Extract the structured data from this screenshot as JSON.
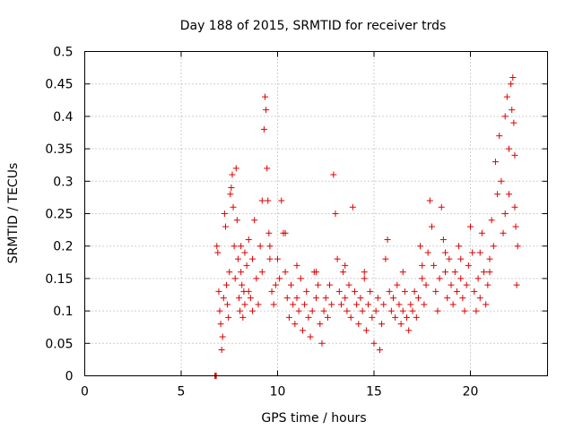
{
  "chart_data": {
    "type": "scatter",
    "title": "Day 188 of 2015, SRMTID for receiver trds",
    "xlabel": "GPS time / hours",
    "ylabel": "SRMTID / TECUs",
    "xlim": [
      0,
      24
    ],
    "ylim": [
      0,
      0.5
    ],
    "xticks": [
      "0",
      "5",
      "10",
      "15",
      "20"
    ],
    "xtick_values": [
      0,
      5,
      10,
      15,
      20
    ],
    "yticks": [
      "0",
      "0.05",
      "0.1",
      "0.15",
      "0.2",
      "0.25",
      "0.3",
      "0.35",
      "0.4",
      "0.45",
      "0.5"
    ],
    "ytick_values": [
      0,
      0.05,
      0.1,
      0.15,
      0.2,
      0.25,
      0.3,
      0.35,
      0.4,
      0.45,
      0.5
    ],
    "grid": true,
    "marker": "+",
    "series_color": "#e00000",
    "series": [
      {
        "name": "",
        "points": [
          [
            6.75,
            0.0
          ],
          [
            6.78,
            0.0
          ],
          [
            6.8,
            0.0
          ],
          [
            6.82,
            0.0
          ],
          [
            6.85,
            0.2
          ],
          [
            6.9,
            0.19
          ],
          [
            6.95,
            0.13
          ],
          [
            7.0,
            0.1
          ],
          [
            7.05,
            0.08
          ],
          [
            7.1,
            0.04
          ],
          [
            7.15,
            0.06
          ],
          [
            7.2,
            0.12
          ],
          [
            7.25,
            0.25
          ],
          [
            7.3,
            0.23
          ],
          [
            7.35,
            0.14
          ],
          [
            7.4,
            0.11
          ],
          [
            7.45,
            0.09
          ],
          [
            7.5,
            0.16
          ],
          [
            7.55,
            0.28
          ],
          [
            7.6,
            0.29
          ],
          [
            7.65,
            0.31
          ],
          [
            7.7,
            0.26
          ],
          [
            7.75,
            0.2
          ],
          [
            7.8,
            0.15
          ],
          [
            7.85,
            0.32
          ],
          [
            7.9,
            0.24
          ],
          [
            7.95,
            0.18
          ],
          [
            8.0,
            0.12
          ],
          [
            8.05,
            0.1
          ],
          [
            8.1,
            0.16
          ],
          [
            8.15,
            0.14
          ],
          [
            8.2,
            0.09
          ],
          [
            8.25,
            0.13
          ],
          [
            8.3,
            0.11
          ],
          [
            8.4,
            0.17
          ],
          [
            8.5,
            0.13
          ],
          [
            8.6,
            0.12
          ],
          [
            8.7,
            0.1
          ],
          [
            8.8,
            0.24
          ],
          [
            8.9,
            0.15
          ],
          [
            9.0,
            0.11
          ],
          [
            9.1,
            0.2
          ],
          [
            9.2,
            0.27
          ],
          [
            9.3,
            0.38
          ],
          [
            9.35,
            0.43
          ],
          [
            9.4,
            0.41
          ],
          [
            9.45,
            0.32
          ],
          [
            9.5,
            0.27
          ],
          [
            9.55,
            0.22
          ],
          [
            9.6,
            0.18
          ],
          [
            9.7,
            0.13
          ],
          [
            9.8,
            0.11
          ],
          [
            9.9,
            0.14
          ],
          [
            10.0,
            0.18
          ],
          [
            10.1,
            0.15
          ],
          [
            10.2,
            0.27
          ],
          [
            10.3,
            0.22
          ],
          [
            10.4,
            0.16
          ],
          [
            10.5,
            0.12
          ],
          [
            10.6,
            0.09
          ],
          [
            10.7,
            0.14
          ],
          [
            10.8,
            0.11
          ],
          [
            10.9,
            0.08
          ],
          [
            11.0,
            0.12
          ],
          [
            11.1,
            0.1
          ],
          [
            11.2,
            0.15
          ],
          [
            11.3,
            0.07
          ],
          [
            11.4,
            0.11
          ],
          [
            11.5,
            0.13
          ],
          [
            11.6,
            0.09
          ],
          [
            11.7,
            0.06
          ],
          [
            11.8,
            0.1
          ],
          [
            11.9,
            0.16
          ],
          [
            12.0,
            0.12
          ],
          [
            12.1,
            0.14
          ],
          [
            12.2,
            0.08
          ],
          [
            12.3,
            0.05
          ],
          [
            12.4,
            0.1
          ],
          [
            12.5,
            0.12
          ],
          [
            12.6,
            0.09
          ],
          [
            12.7,
            0.14
          ],
          [
            12.8,
            0.11
          ],
          [
            12.9,
            0.31
          ],
          [
            13.0,
            0.25
          ],
          [
            13.1,
            0.18
          ],
          [
            13.2,
            0.13
          ],
          [
            13.3,
            0.11
          ],
          [
            13.4,
            0.16
          ],
          [
            13.5,
            0.12
          ],
          [
            13.6,
            0.1
          ],
          [
            13.7,
            0.14
          ],
          [
            13.8,
            0.09
          ],
          [
            13.9,
            0.26
          ],
          [
            14.0,
            0.13
          ],
          [
            14.1,
            0.11
          ],
          [
            14.2,
            0.08
          ],
          [
            14.3,
            0.12
          ],
          [
            14.4,
            0.1
          ],
          [
            14.5,
            0.15
          ],
          [
            14.6,
            0.07
          ],
          [
            14.7,
            0.11
          ],
          [
            14.8,
            0.13
          ],
          [
            14.9,
            0.09
          ],
          [
            15.0,
            0.05
          ],
          [
            15.1,
            0.1
          ],
          [
            15.2,
            0.12
          ],
          [
            15.3,
            0.04
          ],
          [
            15.4,
            0.08
          ],
          [
            15.5,
            0.11
          ],
          [
            15.6,
            0.18
          ],
          [
            15.7,
            0.21
          ],
          [
            15.8,
            0.13
          ],
          [
            15.9,
            0.1
          ],
          [
            16.0,
            0.12
          ],
          [
            16.1,
            0.09
          ],
          [
            16.2,
            0.14
          ],
          [
            16.3,
            0.11
          ],
          [
            16.4,
            0.08
          ],
          [
            16.5,
            0.1
          ],
          [
            16.6,
            0.13
          ],
          [
            16.7,
            0.09
          ],
          [
            16.8,
            0.07
          ],
          [
            16.9,
            0.11
          ],
          [
            17.0,
            0.1
          ],
          [
            17.1,
            0.13
          ],
          [
            17.2,
            0.09
          ],
          [
            17.3,
            0.12
          ],
          [
            17.4,
            0.2
          ],
          [
            17.5,
            0.15
          ],
          [
            17.6,
            0.11
          ],
          [
            17.7,
            0.14
          ],
          [
            17.8,
            0.19
          ],
          [
            17.9,
            0.27
          ],
          [
            18.0,
            0.23
          ],
          [
            18.1,
            0.17
          ],
          [
            18.2,
            0.13
          ],
          [
            18.3,
            0.1
          ],
          [
            18.4,
            0.15
          ],
          [
            18.5,
            0.26
          ],
          [
            18.6,
            0.21
          ],
          [
            18.7,
            0.16
          ],
          [
            18.8,
            0.12
          ],
          [
            18.9,
            0.18
          ],
          [
            19.0,
            0.14
          ],
          [
            19.1,
            0.11
          ],
          [
            19.2,
            0.16
          ],
          [
            19.3,
            0.13
          ],
          [
            19.4,
            0.2
          ],
          [
            19.5,
            0.15
          ],
          [
            19.6,
            0.12
          ],
          [
            19.7,
            0.1
          ],
          [
            19.8,
            0.14
          ],
          [
            19.9,
            0.17
          ],
          [
            20.0,
            0.23
          ],
          [
            20.1,
            0.19
          ],
          [
            20.2,
            0.13
          ],
          [
            20.3,
            0.1
          ],
          [
            20.4,
            0.15
          ],
          [
            20.5,
            0.12
          ],
          [
            20.6,
            0.22
          ],
          [
            20.7,
            0.16
          ],
          [
            20.8,
            0.11
          ],
          [
            20.9,
            0.14
          ],
          [
            21.0,
            0.18
          ],
          [
            21.1,
            0.24
          ],
          [
            21.2,
            0.2
          ],
          [
            21.3,
            0.33
          ],
          [
            21.4,
            0.28
          ],
          [
            21.5,
            0.37
          ],
          [
            21.6,
            0.3
          ],
          [
            21.7,
            0.22
          ],
          [
            21.8,
            0.4
          ],
          [
            21.9,
            0.43
          ],
          [
            22.0,
            0.35
          ],
          [
            22.1,
            0.45
          ],
          [
            22.15,
            0.41
          ],
          [
            22.2,
            0.46
          ],
          [
            22.25,
            0.39
          ],
          [
            22.3,
            0.34
          ],
          [
            22.35,
            0.23
          ],
          [
            22.4,
            0.14
          ],
          [
            22.45,
            0.2
          ],
          [
            8.1,
            0.2
          ],
          [
            8.3,
            0.19
          ],
          [
            8.5,
            0.21
          ],
          [
            8.7,
            0.18
          ],
          [
            9.2,
            0.16
          ],
          [
            9.6,
            0.2
          ],
          [
            10.4,
            0.22
          ],
          [
            11.0,
            0.17
          ],
          [
            12.0,
            0.16
          ],
          [
            13.5,
            0.17
          ],
          [
            14.5,
            0.16
          ],
          [
            16.5,
            0.16
          ],
          [
            17.5,
            0.17
          ],
          [
            18.7,
            0.19
          ],
          [
            19.5,
            0.18
          ],
          [
            20.5,
            0.19
          ],
          [
            21.0,
            0.16
          ],
          [
            21.8,
            0.25
          ],
          [
            22.0,
            0.28
          ],
          [
            22.3,
            0.26
          ]
        ]
      }
    ]
  }
}
